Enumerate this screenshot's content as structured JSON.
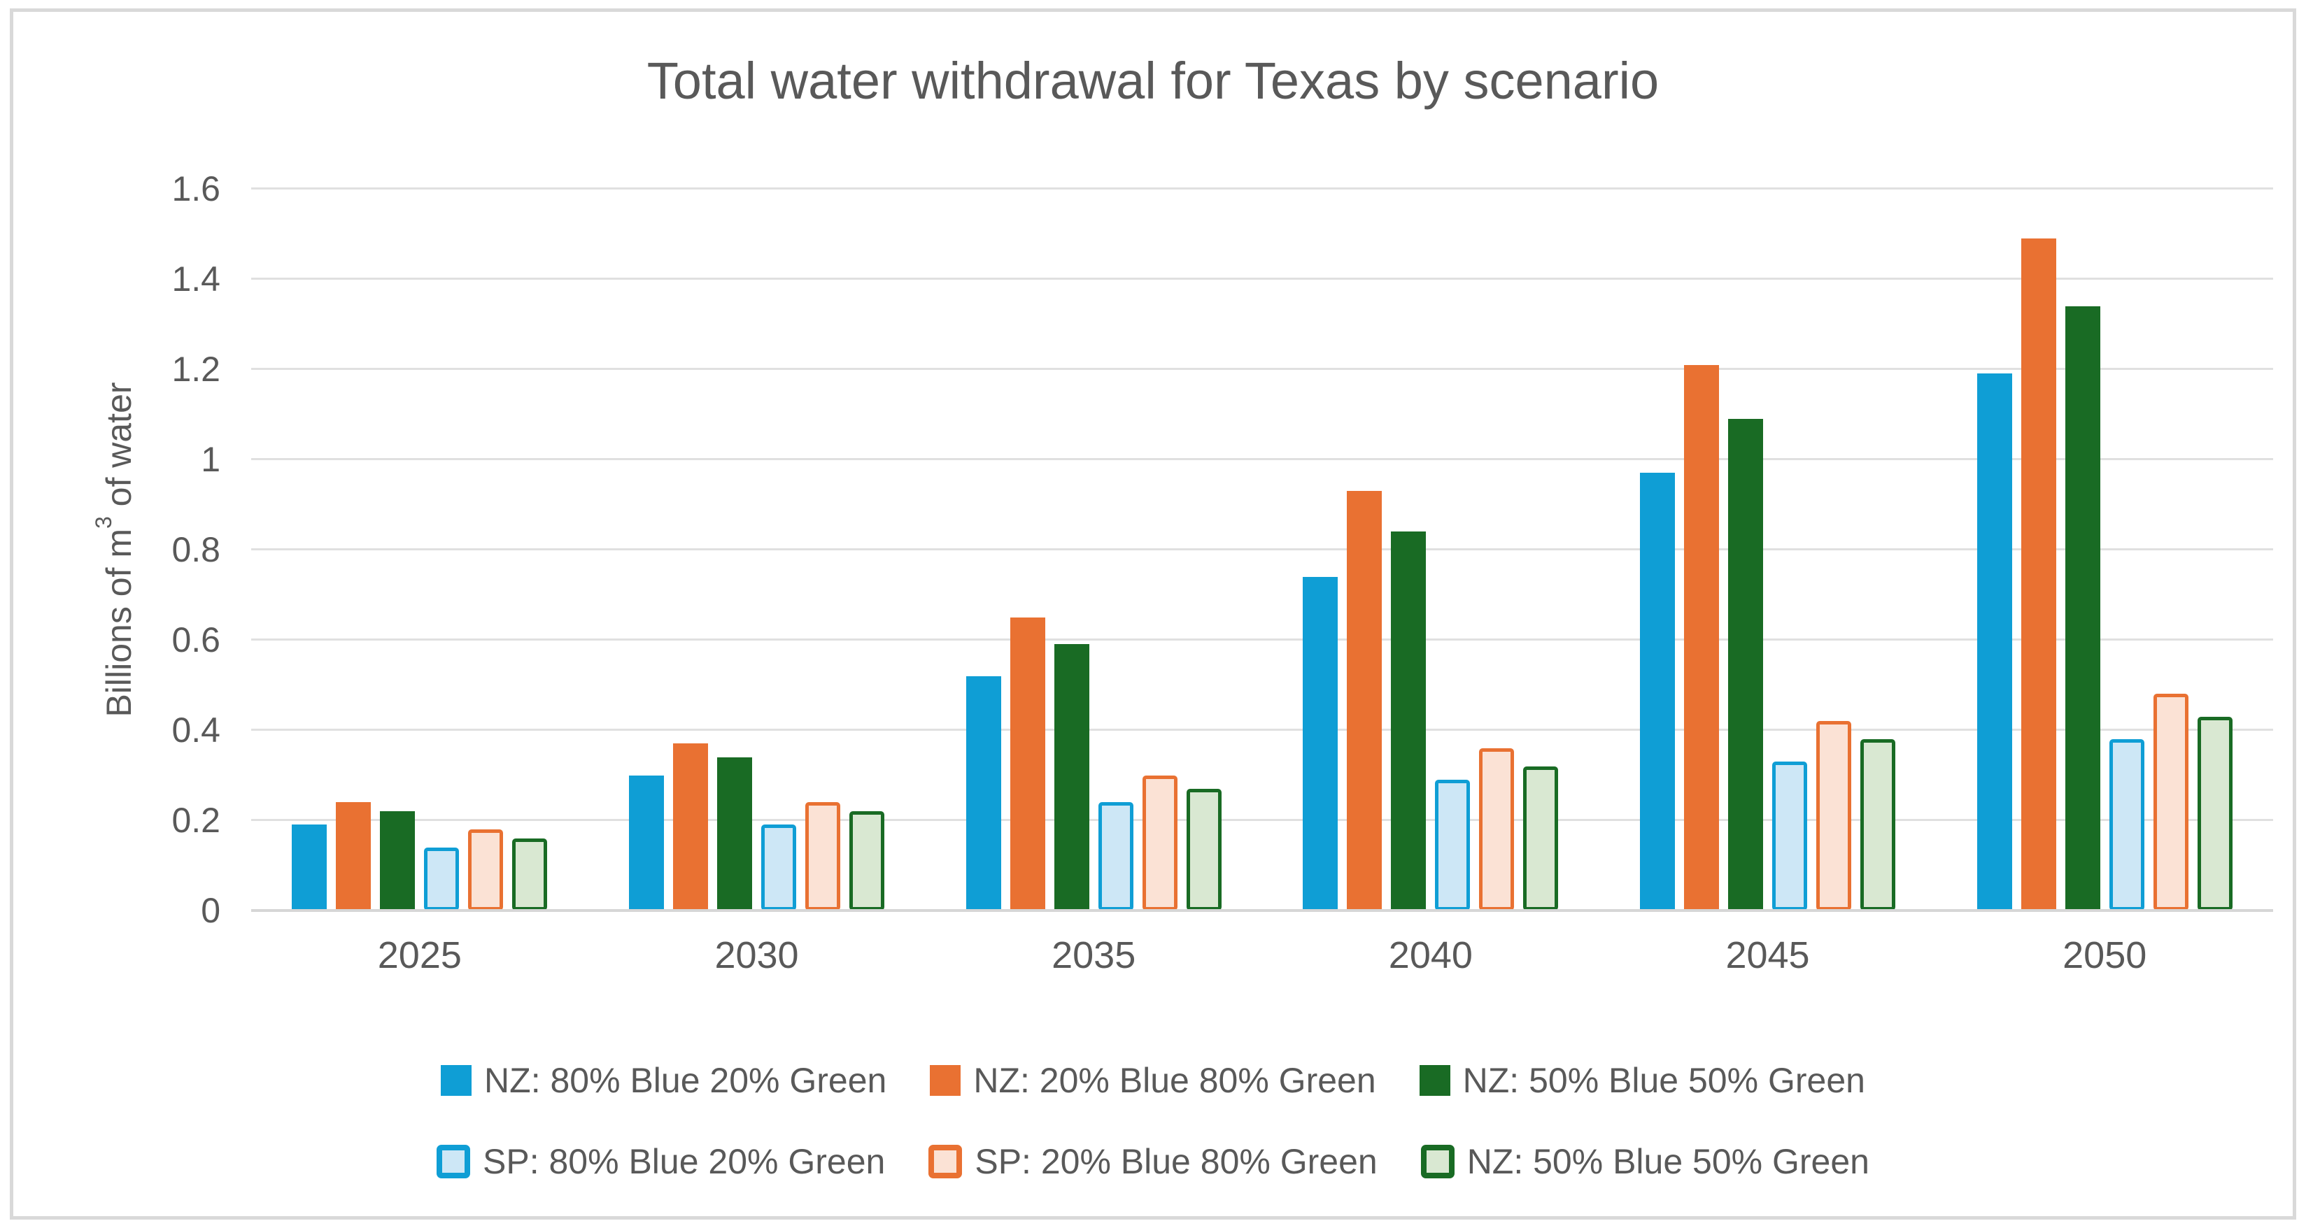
{
  "title": "Total water withdrawal for Texas by scenario",
  "y_axis": {
    "label_pre": "Billions of m",
    "label_sup": "3",
    "label_post": " of water",
    "ticks": [
      {
        "value": 0,
        "label": "0"
      },
      {
        "value": 0.2,
        "label": "0.2"
      },
      {
        "value": 0.4,
        "label": "0.4"
      },
      {
        "value": 0.6,
        "label": "0.6"
      },
      {
        "value": 0.8,
        "label": "0.8"
      },
      {
        "value": 1,
        "label": "1"
      },
      {
        "value": 1.2,
        "label": "1.2"
      },
      {
        "value": 1.4,
        "label": "1.4"
      },
      {
        "value": 1.6,
        "label": "1.6"
      }
    ]
  },
  "chart_data": {
    "type": "bar",
    "title": "Total water withdrawal for Texas by scenario",
    "xlabel": "",
    "ylabel": "Billions of m3 of water",
    "ylim": [
      0,
      1.6
    ],
    "grid": true,
    "gridline_step": 0.2,
    "legend_position": "bottom",
    "categories": [
      "2025",
      "2030",
      "2035",
      "2040",
      "2045",
      "2050"
    ],
    "series": [
      {
        "name": "NZ: 80% Blue 20% Green",
        "style": "solid",
        "color": "#0F9ED5",
        "values": [
          0.19,
          0.3,
          0.52,
          0.74,
          0.97,
          1.19
        ]
      },
      {
        "name": "NZ: 20% Blue 80% Green",
        "style": "solid",
        "color": "#E97132",
        "values": [
          0.24,
          0.37,
          0.65,
          0.93,
          1.21,
          1.49
        ]
      },
      {
        "name": "NZ: 50% Blue 50% Green",
        "style": "solid",
        "color": "#196B24",
        "values": [
          0.22,
          0.34,
          0.59,
          0.84,
          1.09,
          1.34
        ]
      },
      {
        "name": "SP: 80% Blue 20% Green",
        "style": "outlined",
        "color": "#CDE7F6",
        "border": "#0F9ED5",
        "values": [
          0.14,
          0.19,
          0.24,
          0.29,
          0.33,
          0.38
        ]
      },
      {
        "name": "SP: 20% Blue 80% Green",
        "style": "outlined",
        "color": "#FBE2D5",
        "border": "#E97132",
        "values": [
          0.18,
          0.24,
          0.3,
          0.36,
          0.42,
          0.48
        ]
      },
      {
        "name": "NZ: 50% Blue 50% Green",
        "style": "outlined",
        "color": "#D9E8D2",
        "border": "#196B24",
        "values": [
          0.16,
          0.22,
          0.27,
          0.32,
          0.38,
          0.43
        ]
      }
    ],
    "legend_rows": [
      [
        0,
        1,
        2
      ],
      [
        3,
        4,
        5
      ]
    ]
  },
  "colors": {
    "text": "#595959",
    "gridline": "#E0E0E0",
    "axis_line": "#D6D6D6",
    "frame_border": "#D9D9D9",
    "accent_blue": "#0F9ED5",
    "accent_orange": "#E97132",
    "accent_green": "#196B24"
  }
}
